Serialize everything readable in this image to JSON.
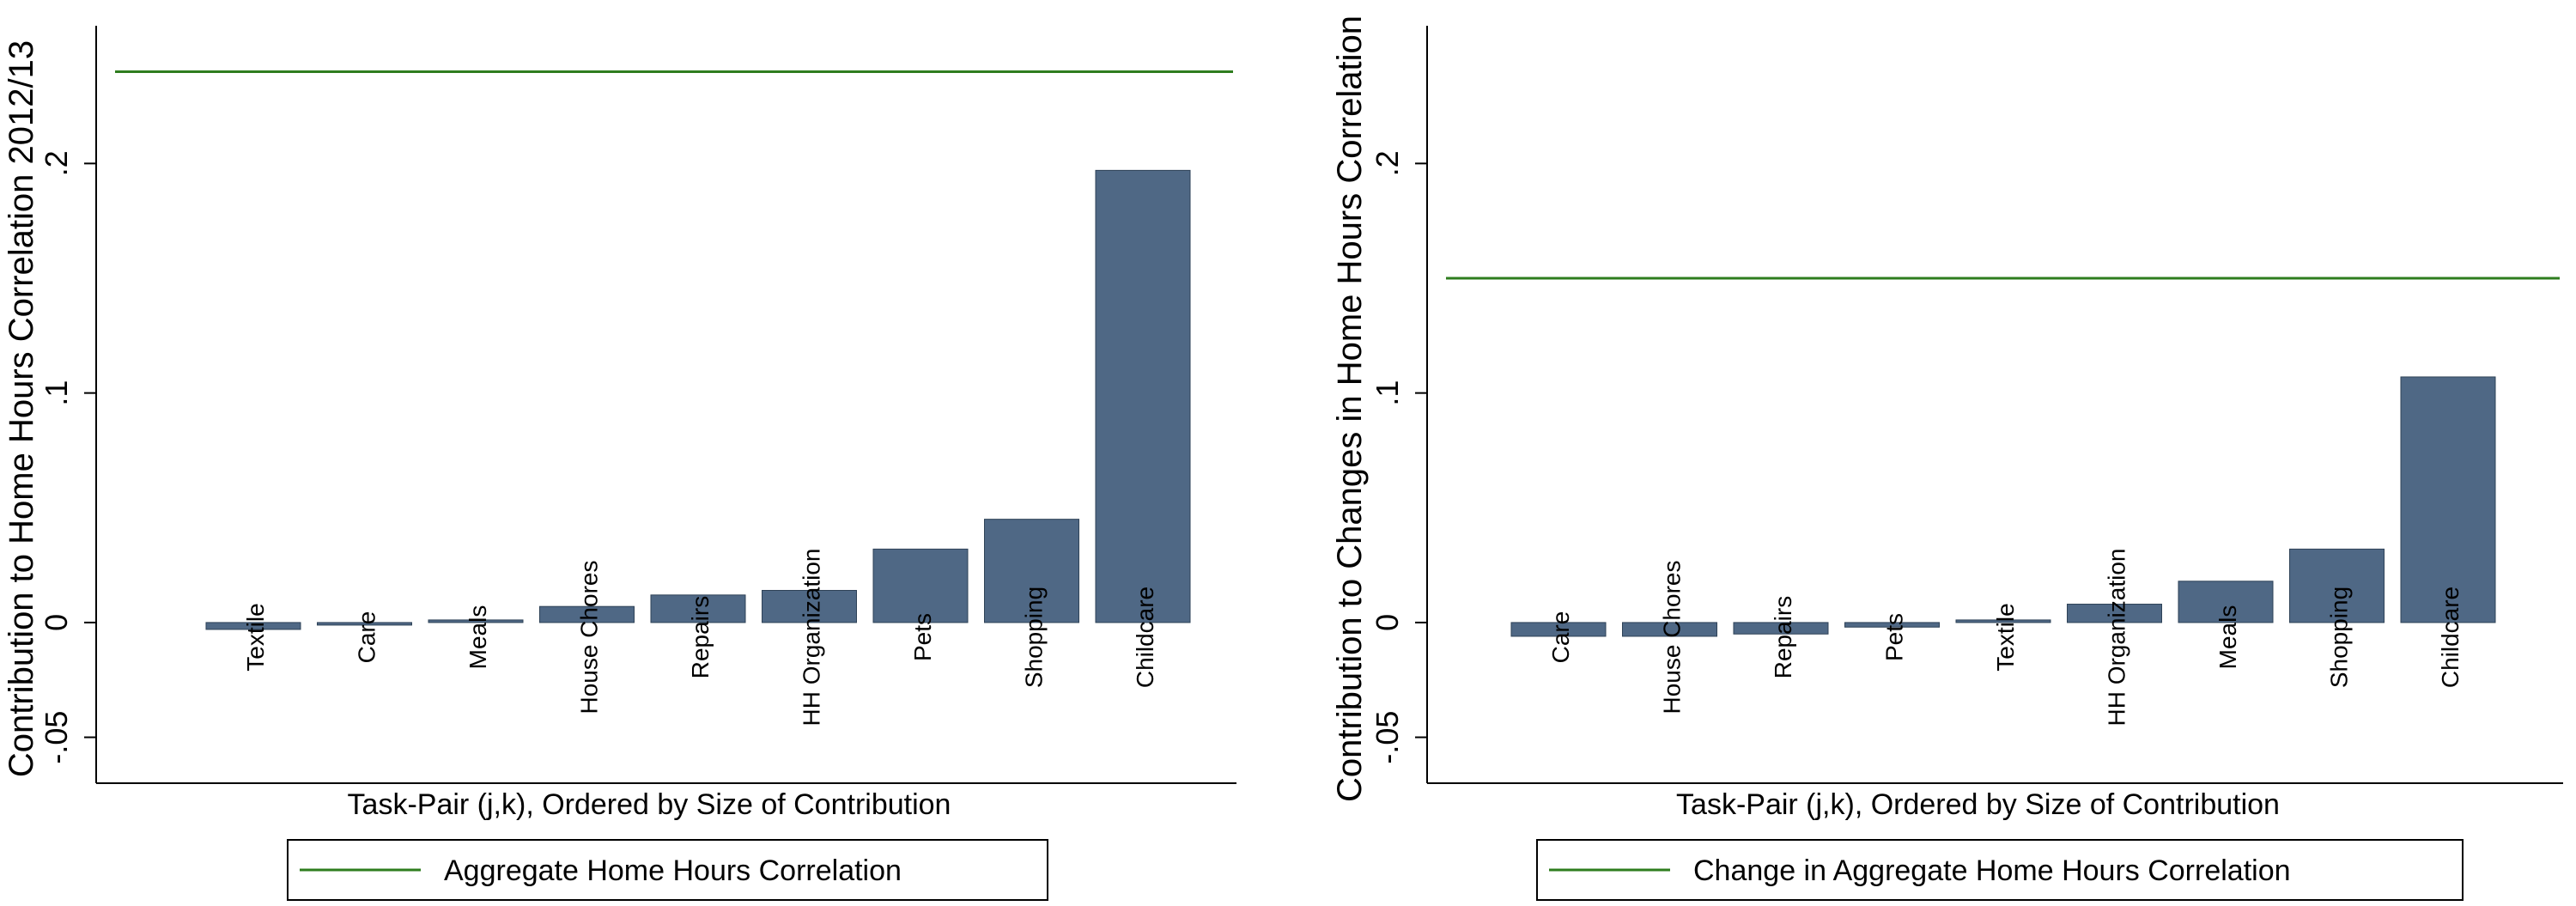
{
  "colors": {
    "bar": "#4f6885",
    "bar_edge": "#2e4257",
    "reference_line": "#2e7d1e",
    "axis": "#000000",
    "highlight_label": "#d42020"
  },
  "chart_data": [
    {
      "type": "bar",
      "title": "",
      "xlabel": "Task-Pair (j,k), Ordered by Size of Contribution",
      "ylabel": "Contribution to Home Hours Correlation 2012/13",
      "ylim": [
        -0.07,
        0.26
      ],
      "yticks": [
        -0.05,
        0,
        0.1,
        0.2
      ],
      "ytick_labels": [
        "-.05",
        "0",
        ".1",
        ".2"
      ],
      "grid": false,
      "categories": [
        "Textile",
        "Care",
        "Meals",
        "House Chores",
        "Repairs",
        "HH Organization",
        "Pets",
        "Shopping",
        "Childcare"
      ],
      "highlight": [
        "Childcare"
      ],
      "values": [
        -0.003,
        -0.001,
        0.001,
        0.007,
        0.012,
        0.014,
        0.032,
        0.045,
        0.197
      ],
      "reference_line": {
        "name": "Aggregate Home Hours Correlation",
        "value": 0.24
      },
      "legend": {
        "position": "bottom",
        "entries": [
          "Aggregate Home Hours Correlation"
        ]
      }
    },
    {
      "type": "bar",
      "title": "",
      "xlabel": "Task-Pair (j,k), Ordered by Size of Contribution",
      "ylabel": "Contribution to Changes in Home Hours Correlation",
      "ylim": [
        -0.07,
        0.26
      ],
      "yticks": [
        -0.05,
        0,
        0.1,
        0.2
      ],
      "ytick_labels": [
        "-.05",
        "0",
        ".1",
        ".2"
      ],
      "grid": false,
      "categories": [
        "Care",
        "House Chores",
        "Repairs",
        "Pets",
        "Textile",
        "HH Organization",
        "Meals",
        "Shopping",
        "Childcare"
      ],
      "highlight": [
        "Childcare"
      ],
      "values": [
        -0.006,
        -0.006,
        -0.005,
        -0.002,
        0.001,
        0.008,
        0.018,
        0.032,
        0.107
      ],
      "reference_line": {
        "name": "Change in Aggregate Home Hours Correlation",
        "value": 0.15
      },
      "legend": {
        "position": "bottom",
        "entries": [
          "Change in Aggregate Home Hours Correlation"
        ]
      }
    }
  ]
}
